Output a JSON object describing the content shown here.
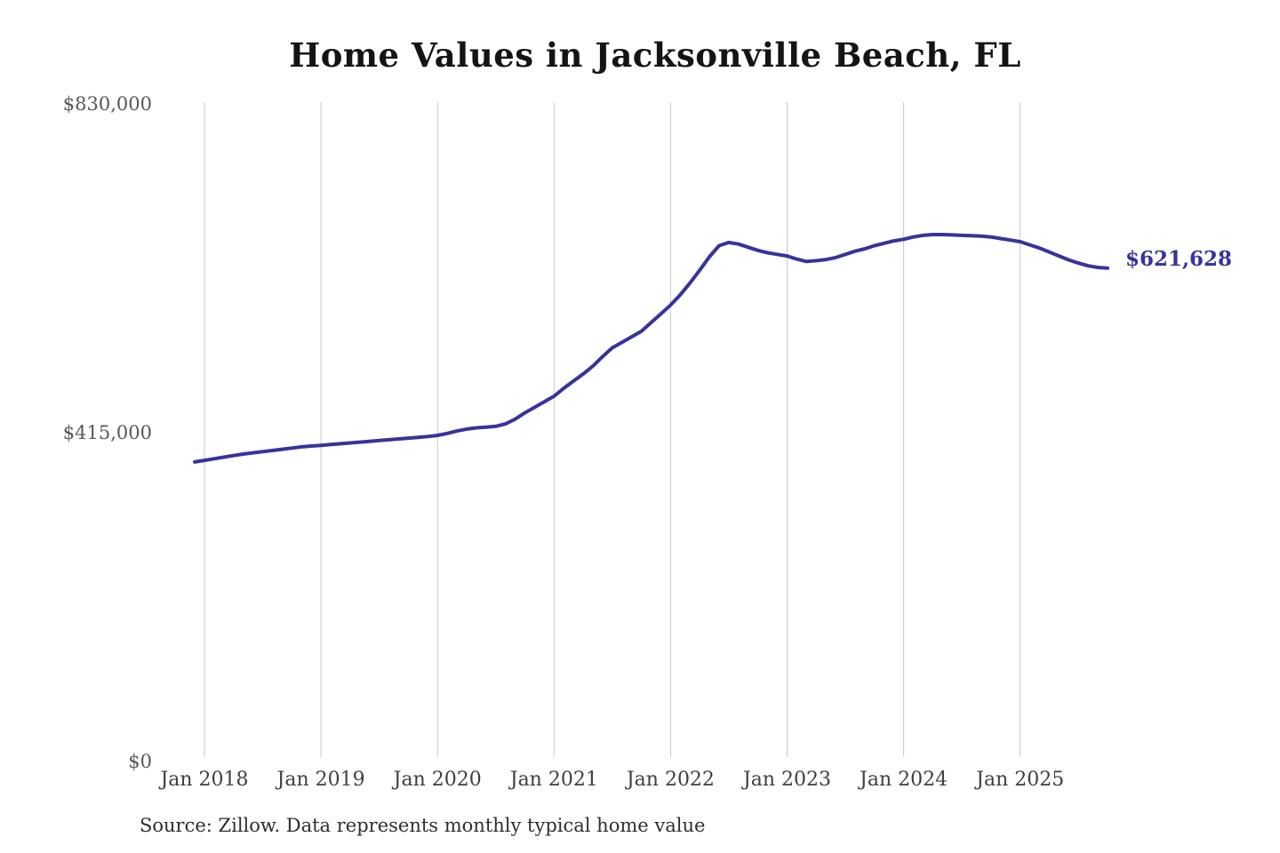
{
  "title": "Home Values in Jacksonville Beach, FL",
  "source_note": "Source: Zillow. Data represents monthly typical home value",
  "end_label": "$621,628",
  "colors": {
    "line": "#38339B",
    "grid": "#C9C9C9",
    "x_axis_text": "#3F3F3F",
    "y_axis_text": "#575757",
    "title_text": "#141414"
  },
  "y_axis": {
    "ticks": [
      "$830,000",
      "$415,000",
      "$0"
    ]
  },
  "x_axis": {
    "ticks": [
      "Jan 2018",
      "Jan 2019",
      "Jan 2020",
      "Jan 2021",
      "Jan 2022",
      "Jan 2023",
      "Jan 2024",
      "Jan 2025"
    ]
  },
  "chart_data": {
    "type": "line",
    "title": "Home Values in Jacksonville Beach, FL",
    "xlabel": "",
    "ylabel": "",
    "ylim": [
      0,
      830000
    ],
    "y_tick_values": [
      0,
      415000,
      830000
    ],
    "x_gridlines": true,
    "y_gridlines": false,
    "legend": "none",
    "last_point_label": "$621,628",
    "last_value": 621628,
    "x": [
      "Dec 2017",
      "Jan 2018",
      "Feb 2018",
      "Mar 2018",
      "Apr 2018",
      "May 2018",
      "Jun 2018",
      "Jul 2018",
      "Aug 2018",
      "Sep 2018",
      "Oct 2018",
      "Nov 2018",
      "Dec 2018",
      "Jan 2019",
      "Feb 2019",
      "Mar 2019",
      "Apr 2019",
      "May 2019",
      "Jun 2019",
      "Jul 2019",
      "Aug 2019",
      "Sep 2019",
      "Oct 2019",
      "Nov 2019",
      "Dec 2019",
      "Jan 2020",
      "Feb 2020",
      "Mar 2020",
      "Apr 2020",
      "May 2020",
      "Jun 2020",
      "Jul 2020",
      "Aug 2020",
      "Sep 2020",
      "Oct 2020",
      "Nov 2020",
      "Dec 2020",
      "Jan 2021",
      "Feb 2021",
      "Mar 2021",
      "Apr 2021",
      "May 2021",
      "Jun 2021",
      "Jul 2021",
      "Aug 2021",
      "Sep 2021",
      "Oct 2021",
      "Nov 2021",
      "Dec 2021",
      "Jan 2022",
      "Feb 2022",
      "Mar 2022",
      "Apr 2022",
      "May 2022",
      "Jun 2022",
      "Jul 2022",
      "Aug 2022",
      "Sep 2022",
      "Oct 2022",
      "Nov 2022",
      "Dec 2022",
      "Jan 2023",
      "Feb 2023",
      "Mar 2023",
      "Apr 2023",
      "May 2023",
      "Jun 2023",
      "Jul 2023",
      "Aug 2023",
      "Sep 2023",
      "Oct 2023",
      "Nov 2023",
      "Dec 2023",
      "Jan 2024",
      "Feb 2024",
      "Mar 2024",
      "Apr 2024",
      "May 2024",
      "Jun 2024",
      "Jul 2024",
      "Aug 2024",
      "Sep 2024",
      "Oct 2024",
      "Nov 2024",
      "Dec 2024",
      "Jan 2025",
      "Feb 2025",
      "Mar 2025",
      "Apr 2025",
      "May 2025",
      "Jun 2025",
      "Jul 2025",
      "Aug 2025",
      "Sep 2025",
      "Oct 2025"
    ],
    "values": [
      377000,
      379000,
      381000,
      383000,
      385000,
      387000,
      388500,
      390000,
      391500,
      393000,
      394500,
      396000,
      397000,
      398000,
      399000,
      400000,
      401000,
      402000,
      403000,
      404000,
      405000,
      406000,
      407000,
      408000,
      409000,
      410500,
      413000,
      416000,
      418500,
      420000,
      421000,
      422000,
      425000,
      431000,
      439000,
      446000,
      453000,
      460000,
      470000,
      479000,
      488000,
      498000,
      510000,
      521000,
      528000,
      535000,
      542000,
      553000,
      564000,
      575000,
      588000,
      603000,
      619000,
      636000,
      650000,
      654000,
      652000,
      648000,
      644000,
      641000,
      639000,
      637000,
      633000,
      630000,
      631000,
      632500,
      635000,
      639000,
      643000,
      646000,
      650000,
      653000,
      656000,
      658000,
      661000,
      663000,
      664000,
      664000,
      663500,
      663000,
      662500,
      662000,
      661000,
      659000,
      657000,
      655000,
      651000,
      647000,
      642000,
      637000,
      632000,
      628000,
      624500,
      622500,
      621628
    ]
  }
}
